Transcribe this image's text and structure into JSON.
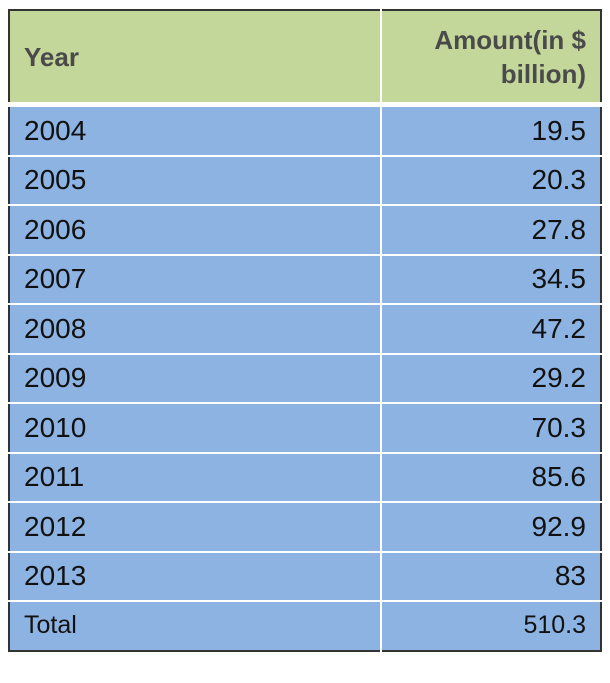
{
  "chart_data": {
    "type": "table",
    "columns": [
      "Year",
      "Amount(in $ billion)"
    ],
    "rows": [
      [
        "2004",
        "19.5"
      ],
      [
        "2005",
        "20.3"
      ],
      [
        "2006",
        "27.8"
      ],
      [
        "2007",
        "34.5"
      ],
      [
        "2008",
        "47.2"
      ],
      [
        "2009",
        "29.2"
      ],
      [
        "2010",
        "70.3"
      ],
      [
        "2011",
        "85.6"
      ],
      [
        "2012",
        "92.9"
      ],
      [
        "2013",
        "83"
      ]
    ],
    "total": [
      "Total",
      "510.3"
    ]
  },
  "colors": {
    "header_bg": "#c4d79b",
    "body_bg": "#8db3e2",
    "header_text": "#4a4a4a"
  }
}
